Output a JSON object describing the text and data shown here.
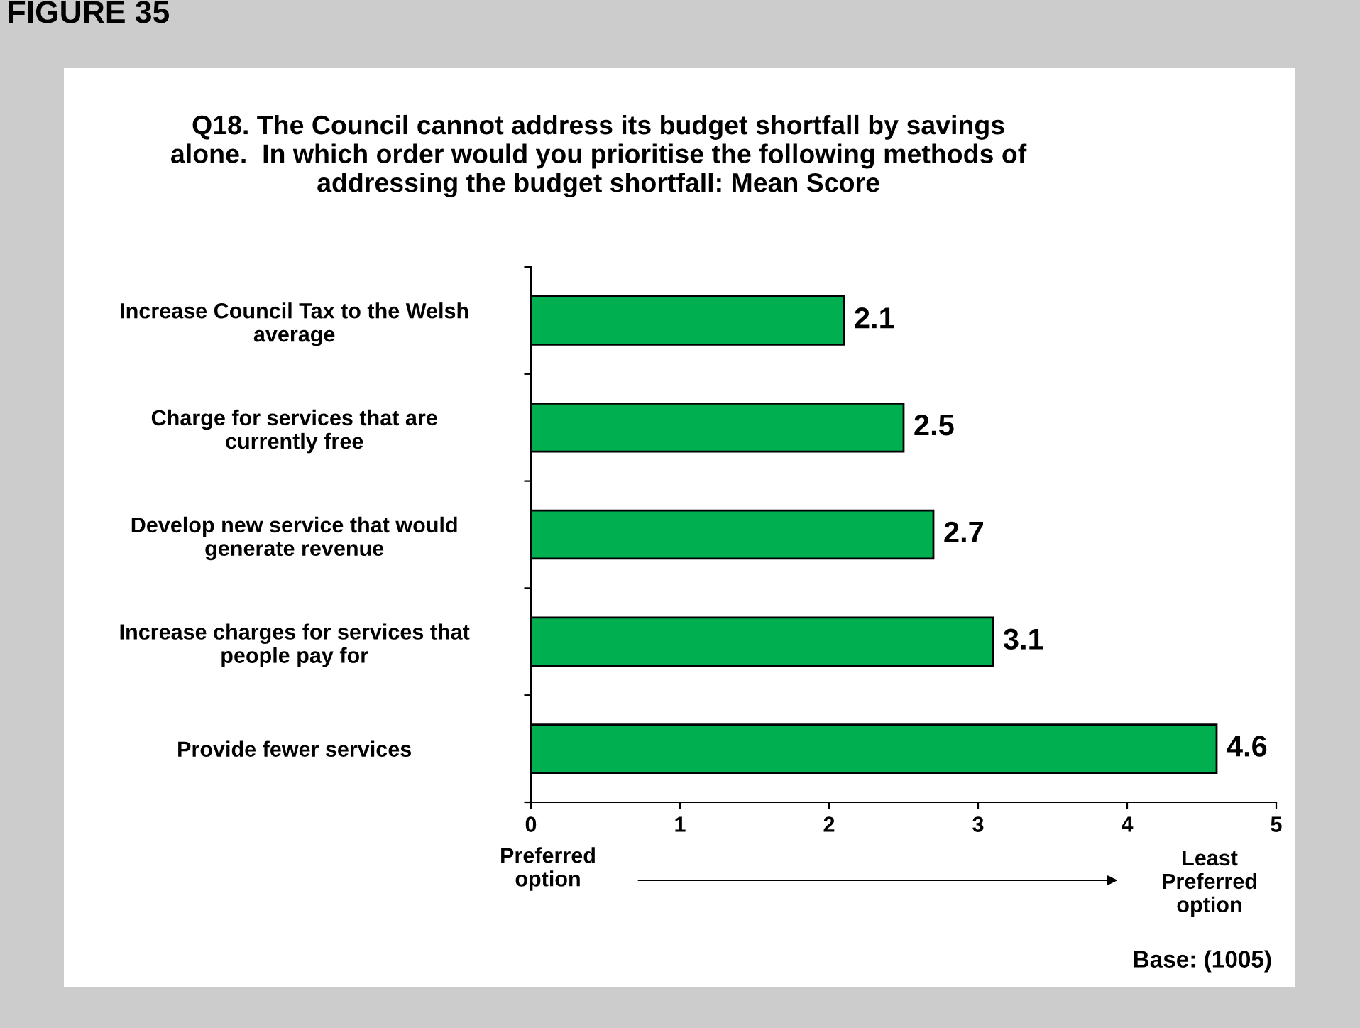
{
  "chart_data": {
    "type": "bar",
    "orientation": "horizontal",
    "title": "Q18. The Council cannot address its budget shortfall by savings\nalone.  In which order would you prioritise the following methods of\naddressing the budget shortfall: Mean Score",
    "categories": [
      "Increase Council Tax to the Welsh\naverage",
      "Charge for services that are\ncurrently free",
      "Develop new service that would\ngenerate revenue",
      "Increase charges for services that\npeople pay for",
      "Provide fewer services"
    ],
    "values": [
      2.1,
      2.5,
      2.7,
      3.1,
      4.6
    ],
    "color": "#00b050",
    "xlim": [
      0,
      5
    ],
    "xticks": [
      0,
      1,
      2,
      3,
      4,
      5
    ],
    "data_labels": true,
    "grid": false,
    "legend": false,
    "annotations": [
      "FIGURE 35",
      "Preferred\noption",
      "Least\nPreferred\noption",
      "Base: (1005)"
    ]
  }
}
